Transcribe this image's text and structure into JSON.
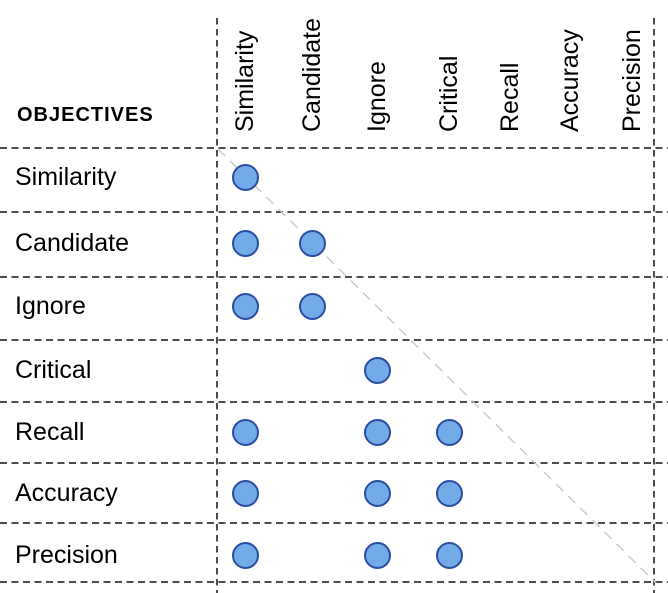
{
  "header": {
    "title": "OBJECTIVES"
  },
  "matrix": {
    "column_labels": [
      "Similarity",
      "Candidate",
      "Ignore",
      "Critical",
      "Recall",
      "Accuracy",
      "Precision"
    ],
    "row_labels": [
      "Similarity",
      "Candidate",
      "Ignore",
      "Critical",
      "Recall",
      "Accuracy",
      "Precision"
    ],
    "cells": [
      [
        1,
        0,
        0,
        0,
        0,
        0,
        0
      ],
      [
        1,
        1,
        0,
        0,
        0,
        0,
        0
      ],
      [
        1,
        1,
        0,
        0,
        0,
        0,
        0
      ],
      [
        0,
        0,
        1,
        0,
        0,
        0,
        0
      ],
      [
        1,
        0,
        1,
        1,
        0,
        0,
        0
      ],
      [
        1,
        0,
        1,
        1,
        0,
        0,
        0
      ],
      [
        1,
        0,
        1,
        1,
        0,
        0,
        0
      ]
    ]
  },
  "colors": {
    "dot_fill": "#73ABE9",
    "dot_border": "#2A4DA0",
    "grid_line": "#4D4D4D",
    "diagonal_line": "#C9C9C9",
    "text": "#000000",
    "background": "#FFFFFF"
  }
}
